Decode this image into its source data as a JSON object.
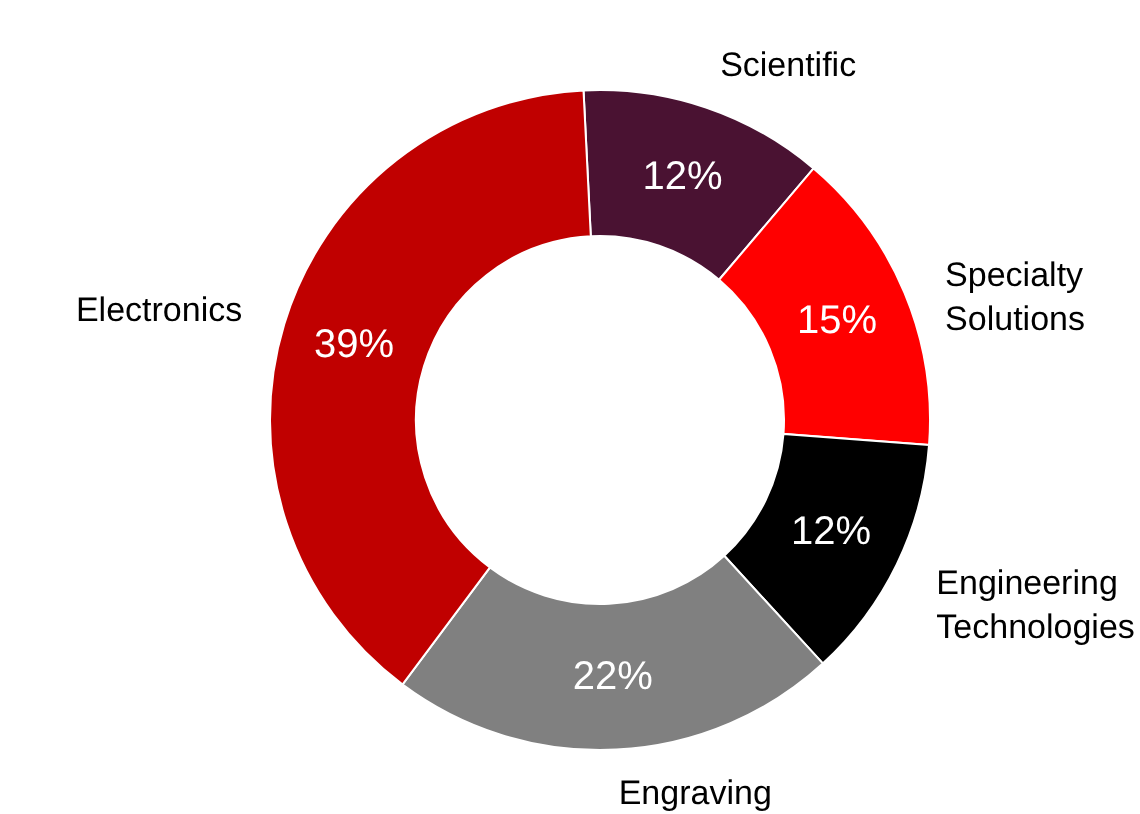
{
  "chart_data": {
    "type": "donut",
    "categories": [
      "Scientific",
      "Specialty Solutions",
      "Engineering Technologies",
      "Engraving",
      "Electronics"
    ],
    "values": [
      12,
      15,
      12,
      22,
      39
    ],
    "colors": [
      "#4a1232",
      "#ff0000",
      "#000000",
      "#808080",
      "#c00000"
    ],
    "value_labels": [
      "12%",
      "15%",
      "12%",
      "22%",
      "39%"
    ]
  }
}
